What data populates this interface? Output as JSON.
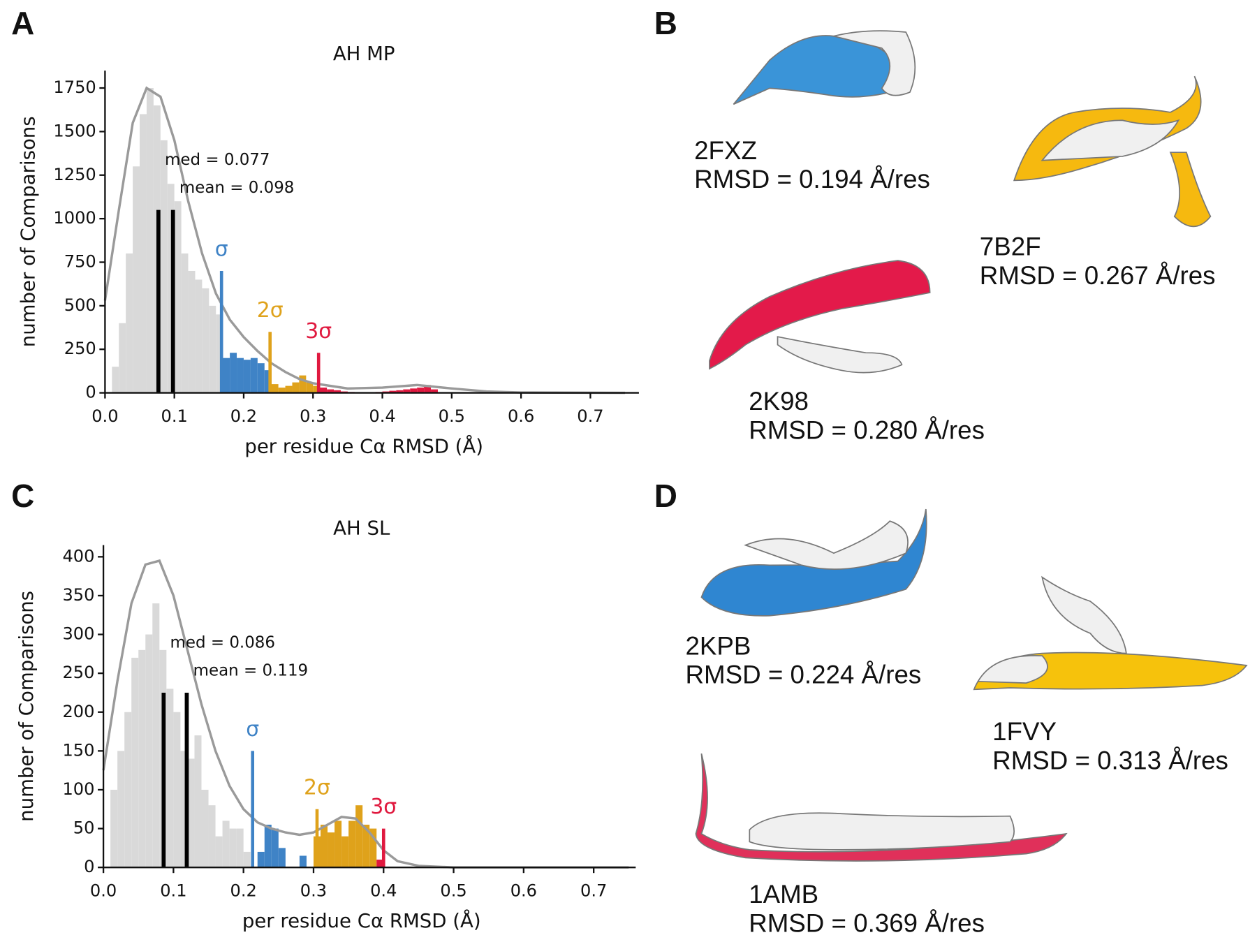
{
  "chart_data": [
    {
      "type": "histogram",
      "panel_label": "A",
      "title": "AH MP",
      "xlabel": "per residue Cα RMSD (Å)",
      "ylabel": "number of Comparisons",
      "xlim": [
        0,
        0.77
      ],
      "xticks": [
        {
          "value": 0,
          "label": "0.0"
        },
        0.1,
        0.2,
        0.3,
        0.4,
        0.5,
        0.6,
        0.7
      ],
      "ylim": [
        0,
        1850
      ],
      "yticks": [
        0,
        250,
        500,
        750,
        1000,
        1250,
        1500,
        1750
      ],
      "series": [
        {
          "color": "#d9d9d9",
          "bins": [
            0.01,
            0.02,
            0.03,
            0.04,
            0.05,
            0.06,
            0.07,
            0.08,
            0.09,
            0.1,
            0.11,
            0.12,
            0.13,
            0.14,
            0.15,
            0.16,
            0.17
          ],
          "counts": [
            150,
            400,
            800,
            1300,
            1600,
            1750,
            1650,
            1450,
            1200,
            1100,
            800,
            700,
            650,
            600,
            500,
            450
          ]
        },
        {
          "color": "#3f83c6",
          "bins": [
            0.17,
            0.18,
            0.19,
            0.2,
            0.21,
            0.22,
            0.23,
            0.24
          ],
          "counts": [
            200,
            230,
            200,
            190,
            200,
            170,
            130
          ]
        },
        {
          "color": "#dfa21b",
          "bins": [
            0.24,
            0.25,
            0.26,
            0.27,
            0.28,
            0.29,
            0.3,
            0.31
          ],
          "counts": [
            50,
            30,
            40,
            60,
            100,
            60,
            40
          ]
        },
        {
          "color": "#e0193f",
          "bins": [
            0.31,
            0.32,
            0.33,
            0.34,
            0.35,
            0.36,
            0.37,
            0.38,
            0.39,
            0.4,
            0.41,
            0.42,
            0.43,
            0.44,
            0.45,
            0.46,
            0.47,
            0.48
          ],
          "counts": [
            30,
            20,
            15,
            8,
            5,
            3,
            2,
            2,
            5,
            8,
            12,
            15,
            20,
            25,
            30,
            45,
            20
          ]
        }
      ],
      "curve": {
        "color": "#9a9a9a",
        "x": [
          0,
          0.02,
          0.04,
          0.06,
          0.08,
          0.1,
          0.12,
          0.14,
          0.16,
          0.18,
          0.2,
          0.22,
          0.24,
          0.26,
          0.28,
          0.3,
          0.35,
          0.4,
          0.45,
          0.5,
          0.55,
          0.6,
          0.75
        ],
        "values": [
          530,
          1050,
          1550,
          1750,
          1700,
          1450,
          1100,
          800,
          570,
          420,
          320,
          240,
          170,
          120,
          80,
          55,
          25,
          30,
          45,
          25,
          8,
          2,
          0
        ]
      },
      "markers": [
        {
          "label": "med = 0.077",
          "x": 0.077,
          "height": 1050,
          "color": "#000000",
          "kind": "stat"
        },
        {
          "label": "mean = 0.098",
          "x": 0.098,
          "height": 1050,
          "color": "#000000",
          "kind": "stat"
        },
        {
          "label": "σ",
          "x": 0.168,
          "height": 700,
          "color": "#3f83c6",
          "kind": "sigma"
        },
        {
          "label": "2σ",
          "x": 0.238,
          "height": 350,
          "color": "#dfa21b",
          "kind": "sigma"
        },
        {
          "label": "3σ",
          "x": 0.308,
          "height": 230,
          "color": "#e0193f",
          "kind": "sigma"
        }
      ]
    },
    {
      "type": "histogram",
      "panel_label": "C",
      "title": "AH SL",
      "xlabel": "per residue Cα RMSD (Å)",
      "ylabel": "number of Comparisons",
      "xlim": [
        0,
        0.76
      ],
      "xticks": [
        {
          "value": 0,
          "label": "0.0"
        },
        0.1,
        0.2,
        0.3,
        0.4,
        0.5,
        0.6,
        0.7
      ],
      "ylim": [
        0,
        415
      ],
      "yticks": [
        0,
        50,
        100,
        150,
        200,
        250,
        300,
        350,
        400
      ],
      "series": [
        {
          "color": "#d9d9d9",
          "bins": [
            0.01,
            0.02,
            0.03,
            0.04,
            0.05,
            0.06,
            0.07,
            0.08,
            0.09,
            0.1,
            0.11,
            0.12,
            0.13,
            0.14,
            0.15,
            0.16,
            0.17,
            0.18,
            0.19,
            0.2,
            0.21
          ],
          "counts": [
            100,
            150,
            200,
            270,
            280,
            300,
            340,
            280,
            230,
            200,
            150,
            140,
            170,
            100,
            80,
            40,
            60,
            50,
            50,
            20
          ]
        },
        {
          "color": "#3f83c6",
          "bins": [
            0.22,
            0.23,
            0.24,
            0.25,
            0.26,
            0.27,
            0.28,
            0.29,
            0.3
          ],
          "counts": [
            20,
            55,
            50,
            25,
            0,
            0,
            15,
            0
          ]
        },
        {
          "color": "#dfa21b",
          "bins": [
            0.3,
            0.31,
            0.32,
            0.33,
            0.34,
            0.35,
            0.36,
            0.37,
            0.38,
            0.39
          ],
          "counts": [
            40,
            55,
            45,
            60,
            40,
            60,
            80,
            55,
            50
          ]
        },
        {
          "color": "#e0193f",
          "bins": [
            0.39,
            0.4
          ],
          "counts": [
            10
          ]
        }
      ],
      "curve": {
        "color": "#9a9a9a",
        "x": [
          0,
          0.02,
          0.04,
          0.06,
          0.08,
          0.1,
          0.12,
          0.14,
          0.16,
          0.18,
          0.2,
          0.22,
          0.24,
          0.26,
          0.28,
          0.3,
          0.32,
          0.34,
          0.36,
          0.38,
          0.4,
          0.42,
          0.45,
          0.5,
          0.75
        ],
        "values": [
          125,
          240,
          340,
          390,
          395,
          350,
          280,
          210,
          150,
          105,
          75,
          58,
          50,
          45,
          42,
          45,
          55,
          65,
          63,
          45,
          22,
          8,
          2,
          0,
          0
        ]
      },
      "markers": [
        {
          "label": "med = 0.086",
          "x": 0.086,
          "height": 225,
          "color": "#000000",
          "kind": "stat"
        },
        {
          "label": "mean = 0.119",
          "x": 0.119,
          "height": 225,
          "color": "#000000",
          "kind": "stat"
        },
        {
          "label": "σ",
          "x": 0.213,
          "height": 150,
          "color": "#3f83c6",
          "kind": "sigma"
        },
        {
          "label": "2σ",
          "x": 0.305,
          "height": 75,
          "color": "#dfa21b",
          "kind": "sigma"
        },
        {
          "label": "3σ",
          "x": 0.4,
          "height": 50,
          "color": "#e0193f",
          "kind": "sigma"
        }
      ]
    }
  ],
  "structure_panels": [
    {
      "panel_label": "B",
      "structures": [
        {
          "name": "2FXZ",
          "rmsd": "RMSD = 0.194 Å/res"
        },
        {
          "name": "7B2F",
          "rmsd": "RMSD = 0.267 Å/res"
        },
        {
          "name": "2K98",
          "rmsd": "RMSD = 0.280 Å/res"
        }
      ]
    },
    {
      "panel_label": "D",
      "structures": [
        {
          "name": "2KPB",
          "rmsd": "RMSD = 0.224 Å/res"
        },
        {
          "name": "1FVY",
          "rmsd": "RMSD = 0.313 Å/res"
        },
        {
          "name": "1AMB",
          "rmsd": "RMSD = 0.369 Å/res"
        }
      ]
    }
  ]
}
